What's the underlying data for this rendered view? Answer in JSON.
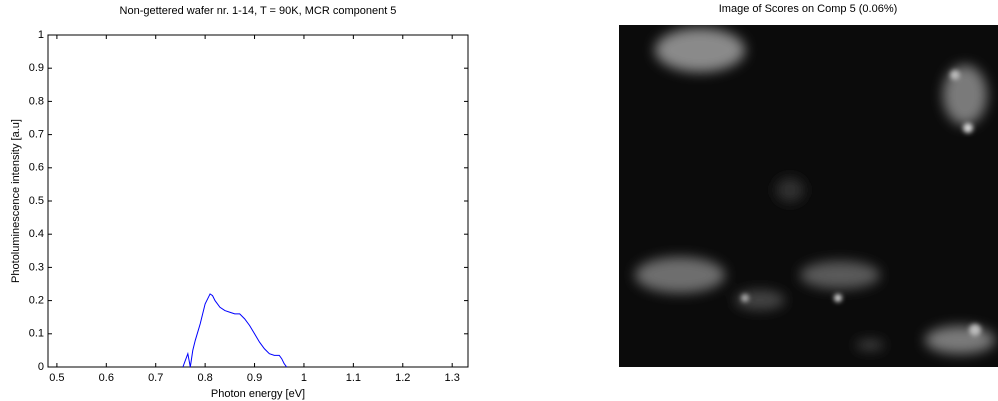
{
  "chart_data": {
    "type": "line",
    "title": "Non-gettered wafer nr. 1-14, T = 90K, MCR component 5",
    "x_label": "Photon energy [eV]",
    "y_label": "Photoluminescence intensity [a.u]",
    "x": [
      0.755,
      0.76,
      0.765,
      0.77,
      0.775,
      0.78,
      0.79,
      0.8,
      0.81,
      0.815,
      0.82,
      0.83,
      0.84,
      0.85,
      0.86,
      0.87,
      0.88,
      0.89,
      0.9,
      0.91,
      0.92,
      0.93,
      0.94,
      0.95,
      0.955,
      0.96,
      0.965
    ],
    "series": [
      {
        "color": "#0000ff",
        "values": [
          0,
          0.02,
          0.04,
          0.0,
          0.05,
          0.08,
          0.13,
          0.19,
          0.22,
          0.215,
          0.2,
          0.18,
          0.17,
          0.165,
          0.16,
          0.16,
          0.145,
          0.125,
          0.1,
          0.075,
          0.055,
          0.04,
          0.035,
          0.035,
          0.025,
          0.01,
          0
        ]
      }
    ],
    "xlim": [
      0.482,
      1.332
    ],
    "ylim": [
      0,
      1
    ],
    "xticks": [
      0.5,
      0.6,
      0.7,
      0.8,
      0.9,
      1,
      1.1,
      1.2,
      1.3
    ],
    "yticks": [
      0,
      0.1,
      0.2,
      0.3,
      0.4,
      0.5,
      0.6,
      0.7,
      0.8,
      0.9,
      1
    ],
    "grid": false
  },
  "image_panel": {
    "title": "Image of Scores on Comp 5 (0.06%)"
  }
}
